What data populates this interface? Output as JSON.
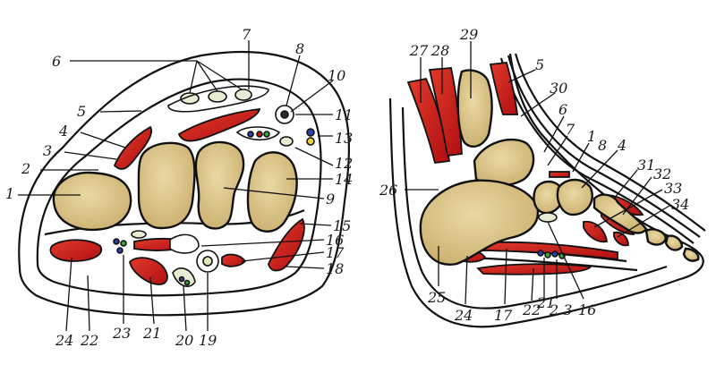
{
  "colors": {
    "bone": "#d9c58a",
    "bone_dark": "#c3a967",
    "muscle": "#c61818",
    "muscle_light": "#e84a3a",
    "outline": "#111111",
    "vessel_blue": "#2f3fa8",
    "vessel_green": "#3aa53a",
    "nerve_yellow": "#f2d23a",
    "background": "#ffffff"
  },
  "left_section": {
    "labels": [
      "1",
      "2",
      "3",
      "4",
      "5",
      "6",
      "7",
      "8",
      "10",
      "11",
      "13",
      "12",
      "14",
      "9",
      "15",
      "16",
      "17",
      "18",
      "19",
      "20",
      "21",
      "23",
      "22",
      "24"
    ]
  },
  "right_section": {
    "labels": [
      "27",
      "28",
      "29",
      "5",
      "30",
      "6",
      "7",
      "1",
      "8",
      "4",
      "31",
      "32",
      "33",
      "34",
      "26",
      "25",
      "24",
      "17",
      "22",
      "21",
      "2 3",
      "16"
    ]
  }
}
